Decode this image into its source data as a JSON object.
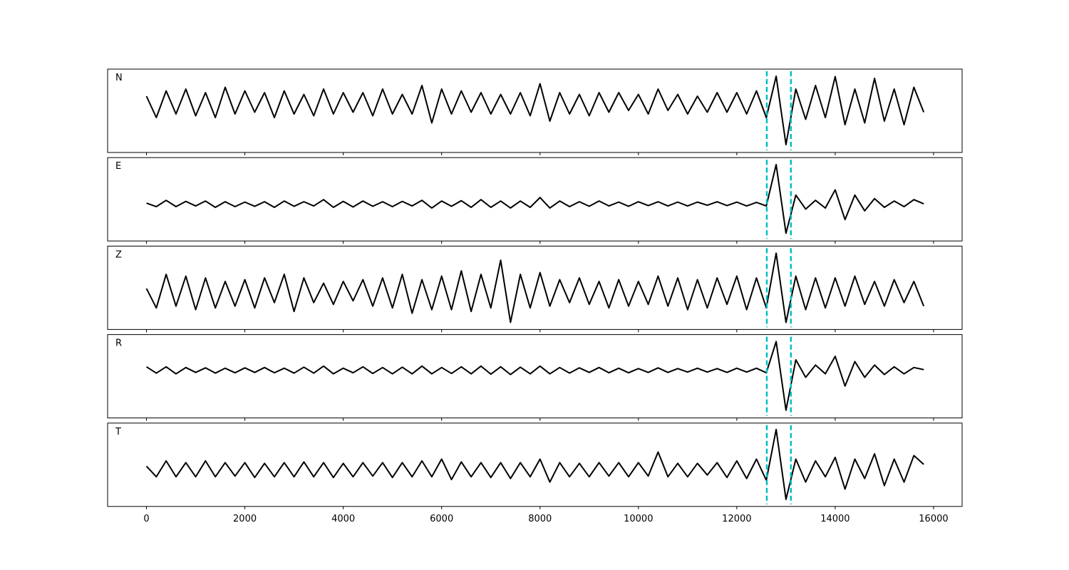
{
  "chart_data": {
    "type": "line",
    "x": [
      0,
      200,
      400,
      600,
      800,
      1000,
      1200,
      1400,
      1600,
      1800,
      2000,
      2200,
      2400,
      2600,
      2800,
      3000,
      3200,
      3400,
      3600,
      3800,
      4000,
      4200,
      4400,
      4600,
      4800,
      5000,
      5200,
      5400,
      5600,
      5800,
      6000,
      6200,
      6400,
      6600,
      6800,
      7000,
      7200,
      7400,
      7600,
      7800,
      8000,
      8200,
      8400,
      8600,
      8800,
      9000,
      9200,
      9400,
      9600,
      9800,
      10000,
      10200,
      10400,
      10600,
      10800,
      11000,
      11200,
      11400,
      11600,
      11800,
      12000,
      12200,
      12400,
      12600,
      12800,
      13000,
      13200,
      13400,
      13600,
      13800,
      14000,
      14200,
      14400,
      14600,
      14800,
      15000,
      15200,
      15400,
      15600,
      15800
    ],
    "xlim": [
      -790,
      16580
    ],
    "xticks": [
      0,
      2000,
      4000,
      6000,
      8000,
      10000,
      12000,
      14000,
      16000
    ],
    "vlines": [
      12610,
      13100
    ],
    "vline_color": "#00bfbf",
    "series": [
      {
        "name": "N",
        "color": "#000000",
        "ylim": [
          -1.38,
          0.96
        ],
        "values": [
          0.2,
          -0.4,
          0.35,
          -0.3,
          0.4,
          -0.35,
          0.3,
          -0.4,
          0.45,
          -0.3,
          0.35,
          -0.25,
          0.3,
          -0.4,
          0.35,
          -0.3,
          0.25,
          -0.35,
          0.4,
          -0.3,
          0.3,
          -0.25,
          0.3,
          -0.35,
          0.4,
          -0.3,
          0.25,
          -0.3,
          0.5,
          -0.55,
          0.4,
          -0.3,
          0.35,
          -0.25,
          0.3,
          -0.3,
          0.25,
          -0.3,
          0.3,
          -0.35,
          0.55,
          -0.5,
          0.3,
          -0.3,
          0.25,
          -0.35,
          0.3,
          -0.25,
          0.3,
          -0.2,
          0.25,
          -0.3,
          0.4,
          -0.2,
          0.25,
          -0.3,
          0.2,
          -0.25,
          0.3,
          -0.25,
          0.3,
          -0.3,
          0.35,
          -0.4,
          0.76,
          -1.16,
          0.4,
          -0.45,
          0.5,
          -0.4,
          0.75,
          -0.6,
          0.4,
          -0.55,
          0.7,
          -0.5,
          0.4,
          -0.6,
          0.45,
          -0.25
        ]
      },
      {
        "name": "E",
        "color": "#000000",
        "ylim": [
          -1.06,
          1.32
        ],
        "values": [
          0.02,
          -0.08,
          0.1,
          -0.08,
          0.07,
          -0.06,
          0.08,
          -0.1,
          0.06,
          -0.08,
          0.05,
          -0.07,
          0.06,
          -0.1,
          0.08,
          -0.07,
          0.06,
          -0.06,
          0.12,
          -0.1,
          0.07,
          -0.09,
          0.08,
          -0.07,
          0.06,
          -0.08,
          0.07,
          -0.06,
          0.1,
          -0.12,
          0.08,
          -0.07,
          0.09,
          -0.1,
          0.12,
          -0.1,
          0.08,
          -0.12,
          0.08,
          -0.1,
          0.18,
          -0.12,
          0.08,
          -0.08,
          0.06,
          -0.07,
          0.08,
          -0.06,
          0.05,
          -0.07,
          0.06,
          -0.05,
          0.06,
          -0.06,
          0.05,
          -0.06,
          0.05,
          -0.04,
          0.06,
          -0.05,
          0.05,
          -0.06,
          0.04,
          -0.06,
          1.12,
          -0.84,
          0.25,
          -0.15,
          0.1,
          -0.12,
          0.4,
          -0.45,
          0.25,
          -0.2,
          0.15,
          -0.1,
          0.08,
          -0.08,
          0.12,
          0
        ]
      },
      {
        "name": "Z",
        "color": "#000000",
        "ylim": [
          -1.06,
          1.3
        ],
        "values": [
          0.1,
          -0.45,
          0.5,
          -0.4,
          0.45,
          -0.5,
          0.4,
          -0.45,
          0.3,
          -0.4,
          0.35,
          -0.45,
          0.4,
          -0.3,
          0.5,
          -0.55,
          0.4,
          -0.3,
          0.25,
          -0.35,
          0.3,
          -0.25,
          0.35,
          -0.4,
          0.4,
          -0.45,
          0.5,
          -0.6,
          0.35,
          -0.5,
          0.45,
          -0.5,
          0.6,
          -0.55,
          0.5,
          -0.45,
          0.9,
          -0.86,
          0.5,
          -0.45,
          0.55,
          -0.4,
          0.35,
          -0.3,
          0.4,
          -0.35,
          0.3,
          -0.45,
          0.35,
          -0.4,
          0.3,
          -0.35,
          0.45,
          -0.4,
          0.4,
          -0.5,
          0.35,
          -0.45,
          0.4,
          -0.35,
          0.45,
          -0.5,
          0.4,
          -0.45,
          1.1,
          -0.86,
          0.45,
          -0.5,
          0.4,
          -0.45,
          0.4,
          -0.4,
          0.45,
          -0.35,
          0.3,
          -0.4,
          0.35,
          -0.3,
          0.3,
          -0.4
        ]
      },
      {
        "name": "R",
        "color": "#000000",
        "ylim": [
          -1.36,
          1.02
        ],
        "values": [
          0.1,
          -0.08,
          0.1,
          -0.1,
          0.08,
          -0.06,
          0.07,
          -0.08,
          0.06,
          -0.07,
          0.07,
          -0.06,
          0.08,
          -0.07,
          0.06,
          -0.08,
          0.09,
          -0.08,
          0.12,
          -0.1,
          0.06,
          -0.07,
          0.1,
          -0.09,
          0.08,
          -0.1,
          0.09,
          -0.1,
          0.12,
          -0.1,
          0.08,
          -0.09,
          0.1,
          -0.1,
          0.12,
          -0.11,
          0.1,
          -0.12,
          0.09,
          -0.1,
          0.12,
          -0.1,
          0.08,
          -0.08,
          0.07,
          -0.06,
          0.08,
          -0.07,
          0.06,
          -0.07,
          0.05,
          -0.06,
          0.07,
          -0.06,
          0.05,
          -0.05,
          0.06,
          -0.05,
          0.05,
          -0.06,
          0.06,
          -0.05,
          0.06,
          -0.07,
          0.82,
          -1.14,
          0.3,
          -0.2,
          0.15,
          -0.1,
          0.4,
          -0.45,
          0.25,
          -0.2,
          0.15,
          -0.12,
          0.1,
          -0.1,
          0.08,
          0.02
        ]
      },
      {
        "name": "T",
        "color": "#000000",
        "ylim": [
          -1.04,
          1.32
        ],
        "values": [
          0.1,
          -0.2,
          0.25,
          -0.2,
          0.2,
          -0.2,
          0.25,
          -0.2,
          0.2,
          -0.18,
          0.2,
          -0.22,
          0.18,
          -0.2,
          0.2,
          -0.2,
          0.22,
          -0.2,
          0.2,
          -0.22,
          0.18,
          -0.2,
          0.2,
          -0.18,
          0.2,
          -0.22,
          0.2,
          -0.2,
          0.25,
          -0.2,
          0.3,
          -0.28,
          0.22,
          -0.2,
          0.2,
          -0.22,
          0.2,
          -0.25,
          0.2,
          -0.2,
          0.3,
          -0.35,
          0.2,
          -0.2,
          0.18,
          -0.2,
          0.2,
          -0.18,
          0.2,
          -0.2,
          0.2,
          -0.18,
          0.5,
          -0.2,
          0.18,
          -0.2,
          0.18,
          -0.15,
          0.2,
          -0.22,
          0.25,
          -0.25,
          0.3,
          -0.3,
          1.14,
          -0.84,
          0.3,
          -0.35,
          0.25,
          -0.2,
          0.35,
          -0.55,
          0.3,
          -0.25,
          0.45,
          -0.45,
          0.3,
          -0.35,
          0.4,
          0.15
        ]
      }
    ]
  }
}
